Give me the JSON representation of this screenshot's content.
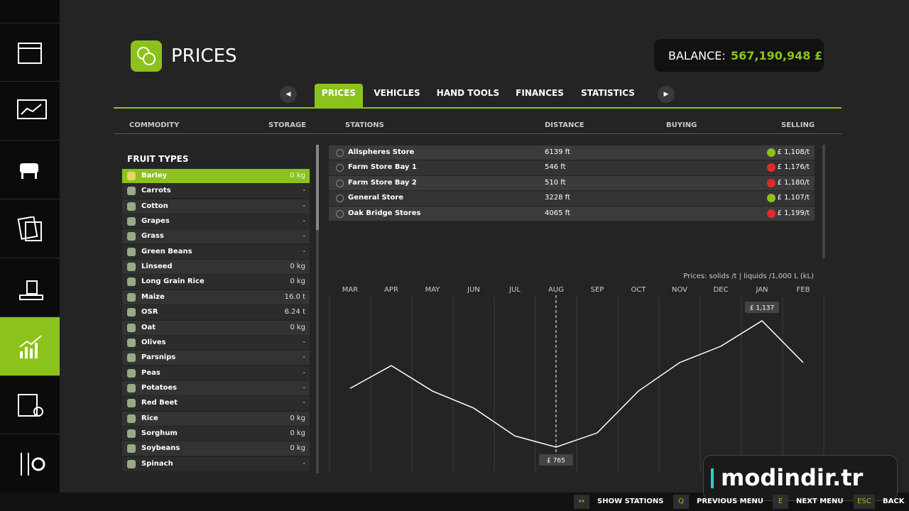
{
  "header": {
    "title": "PRICES",
    "balance_label": "BALANCE:",
    "balance": "567,190,948 £"
  },
  "tabs": {
    "items": [
      "PRICES",
      "VEHICLES",
      "HAND TOOLS",
      "FINANCES",
      "STATISTICS"
    ],
    "active": 0
  },
  "columns": [
    "COMMODITY",
    "STORAGE",
    "STATIONS",
    "DISTANCE",
    "BUYING",
    "SELLING"
  ],
  "fruit": {
    "heading": "FRUIT TYPES",
    "active": 0,
    "items": [
      {
        "name": "Barley",
        "storage": "0 kg"
      },
      {
        "name": "Carrots",
        "storage": "-"
      },
      {
        "name": "Cotton",
        "storage": "-"
      },
      {
        "name": "Grapes",
        "storage": "-"
      },
      {
        "name": "Grass",
        "storage": "-"
      },
      {
        "name": "Green Beans",
        "storage": "-"
      },
      {
        "name": "Linseed",
        "storage": "0 kg"
      },
      {
        "name": "Long Grain Rice",
        "storage": "0 kg"
      },
      {
        "name": "Maize",
        "storage": "16.0 t"
      },
      {
        "name": "OSR",
        "storage": "6.24 t"
      },
      {
        "name": "Oat",
        "storage": "0 kg"
      },
      {
        "name": "Olives",
        "storage": "-"
      },
      {
        "name": "Parsnips",
        "storage": "-"
      },
      {
        "name": "Peas",
        "storage": "-"
      },
      {
        "name": "Potatoes",
        "storage": "-"
      },
      {
        "name": "Red Beet",
        "storage": "-"
      },
      {
        "name": "Rice",
        "storage": "0 kg"
      },
      {
        "name": "Sorghum",
        "storage": "0 kg"
      },
      {
        "name": "Soybeans",
        "storage": "0 kg"
      },
      {
        "name": "Spinach",
        "storage": "-"
      }
    ]
  },
  "stations": [
    {
      "name": "Allspheres Store",
      "distance": "6139 ft",
      "trend": "up",
      "price": "£ 1,108/t"
    },
    {
      "name": "Farm Store Bay 1",
      "distance": "546 ft",
      "trend": "down",
      "price": "£ 1,176/t"
    },
    {
      "name": "Farm Store Bay 2",
      "distance": "510 ft",
      "trend": "down",
      "price": "£ 1,180/t"
    },
    {
      "name": "General Store",
      "distance": "3228 ft",
      "trend": "up",
      "price": "£ 1,107/t"
    },
    {
      "name": "Oak Bridge Stores",
      "distance": "4065 ft",
      "trend": "down",
      "price": "£ 1,199/t"
    }
  ],
  "chart_data": {
    "type": "line",
    "note": "Prices: solids /t | liquids /1,000 L (kL)",
    "categories": [
      "MAR",
      "APR",
      "MAY",
      "JUN",
      "JUL",
      "AUG",
      "SEP",
      "OCT",
      "NOV",
      "DEC",
      "JAN",
      "FEB"
    ],
    "values": [
      938,
      1005,
      930,
      880,
      798,
      765,
      807,
      930,
      1014,
      1062,
      1137,
      1014
    ],
    "value_labels": [
      null,
      null,
      null,
      null,
      null,
      "£ 765",
      null,
      null,
      null,
      null,
      "£ 1,137",
      null
    ],
    "color": "#ffffff"
  },
  "footer": [
    {
      "key": "↔",
      "label": "SHOW STATIONS"
    },
    {
      "key": "Q",
      "label": "PREVIOUS MENU"
    },
    {
      "key": "E",
      "label": "NEXT MENU"
    },
    {
      "key": "ESC",
      "label": "BACK"
    }
  ],
  "watermark": "modindir.tr"
}
